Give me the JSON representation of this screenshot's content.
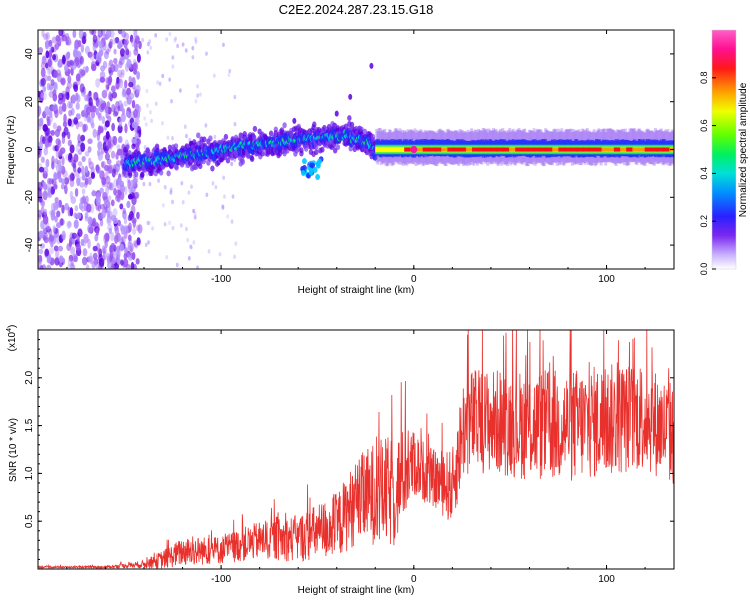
{
  "title": "C2E2.2024.287.23.15.G18",
  "chart_data": [
    {
      "type": "heatmap",
      "name": "spectrogram",
      "xlabel": "Height of straight line (km)",
      "ylabel": "Frequency (Hz)",
      "xlim": [
        -195,
        135
      ],
      "ylim": [
        -50,
        50
      ],
      "xticks": [
        -100,
        0,
        100
      ],
      "yticks": [
        -40,
        -20,
        0,
        20,
        40
      ],
      "colorbar": {
        "label": "Normalized spectral amplitude",
        "range": [
          0,
          1
        ],
        "ticks": [
          "0.0",
          "0.2",
          "0.4",
          "0.6",
          "0.8"
        ],
        "tick_values": [
          0.0,
          0.2,
          0.4,
          0.6,
          0.8
        ],
        "colors": [
          "#ffffff",
          "#b090ff",
          "#5a00e0",
          "#2030ff",
          "#00c8ff",
          "#00e878",
          "#78ff00",
          "#ffff00",
          "#ff9900",
          "#ff1010",
          "#ff10a0",
          "#ff60c8"
        ]
      },
      "features": {
        "noise_region_km": [
          -195,
          -142
        ],
        "signal_band_center_hz": [
          [
            -150,
            -6
          ],
          [
            -120,
            -3
          ],
          [
            -90,
            1
          ],
          [
            -60,
            4
          ],
          [
            -35,
            6
          ],
          [
            -22,
            2
          ],
          [
            -20,
            0
          ],
          [
            135,
            0
          ]
        ],
        "strong_line_km": [
          -20,
          135
        ],
        "strong_line_freq_hz": 0
      }
    },
    {
      "type": "line",
      "name": "snr",
      "xlabel": "Height of straight line (km)",
      "ylabel": "SNR (10 * v/v)",
      "scale_label_base": "(x10",
      "scale_label_exp": "4",
      "scale_label_end": ")",
      "xlim": [
        -195,
        135
      ],
      "ylim": [
        0,
        2.5
      ],
      "xticks": [
        -100,
        0,
        100
      ],
      "yticks": [
        0.5,
        1.0,
        1.5,
        2.0
      ],
      "ytick_labels": [
        "0.5",
        "1.0",
        "1.5",
        "2.0"
      ],
      "color": "#e8302c",
      "envelope": {
        "x": [
          -195,
          -160,
          -140,
          -130,
          -120,
          -100,
          -80,
          -60,
          -40,
          -30,
          -20,
          -10,
          -5,
          0,
          10,
          20,
          26,
          30,
          40,
          60,
          80,
          100,
          120,
          135
        ],
        "y": [
          0.02,
          0.02,
          0.05,
          0.1,
          0.18,
          0.2,
          0.3,
          0.32,
          0.45,
          0.7,
          0.8,
          0.8,
          1.0,
          1.1,
          0.95,
          0.85,
          1.5,
          1.55,
          1.55,
          1.5,
          1.5,
          1.55,
          1.6,
          1.4
        ]
      },
      "amplitude": {
        "x": [
          -195,
          -160,
          -140,
          -130,
          -120,
          -100,
          -80,
          -60,
          -40,
          -30,
          -20,
          -10,
          0,
          10,
          20,
          26,
          40,
          70,
          100,
          135
        ],
        "y": [
          0.01,
          0.01,
          0.04,
          0.1,
          0.15,
          0.15,
          0.2,
          0.25,
          0.35,
          0.45,
          0.55,
          0.6,
          0.35,
          0.3,
          0.4,
          0.55,
          0.55,
          0.6,
          0.6,
          0.55
        ]
      }
    }
  ]
}
